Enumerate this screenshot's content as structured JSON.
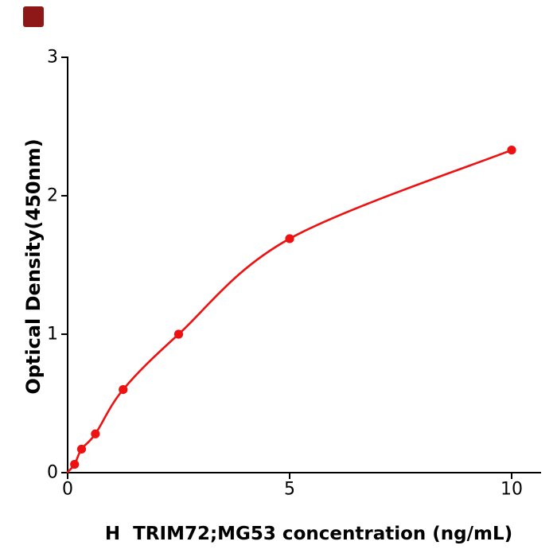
{
  "logo": {
    "color": "#8E1818"
  },
  "chart_data": {
    "type": "scatter",
    "subtype": "standard-curve with smooth fitted line",
    "title": "",
    "xlabel": "H  TRIM72;MG53 concentration (ng/mL)",
    "ylabel": "Optical Density(450nm)",
    "x": [
      0.156,
      0.313,
      0.625,
      1.25,
      2.5,
      5,
      10
    ],
    "y": [
      0.06,
      0.17,
      0.28,
      0.6,
      1.0,
      1.69,
      2.33
    ],
    "curve_start": {
      "x": 0,
      "y": 0.005
    },
    "xlim": [
      0,
      10.65
    ],
    "ylim": [
      0,
      3
    ],
    "xticks": [
      0,
      5,
      10
    ],
    "yticks": [
      0,
      1,
      2,
      3
    ],
    "xtick_labels": [
      "0",
      "5",
      "10"
    ],
    "ytick_labels": [
      "0",
      "1",
      "2",
      "3"
    ],
    "grid": false,
    "legend": null,
    "colors": {
      "series": "#EE1111",
      "axis": "#000000",
      "background": "#FFFFFF"
    }
  }
}
